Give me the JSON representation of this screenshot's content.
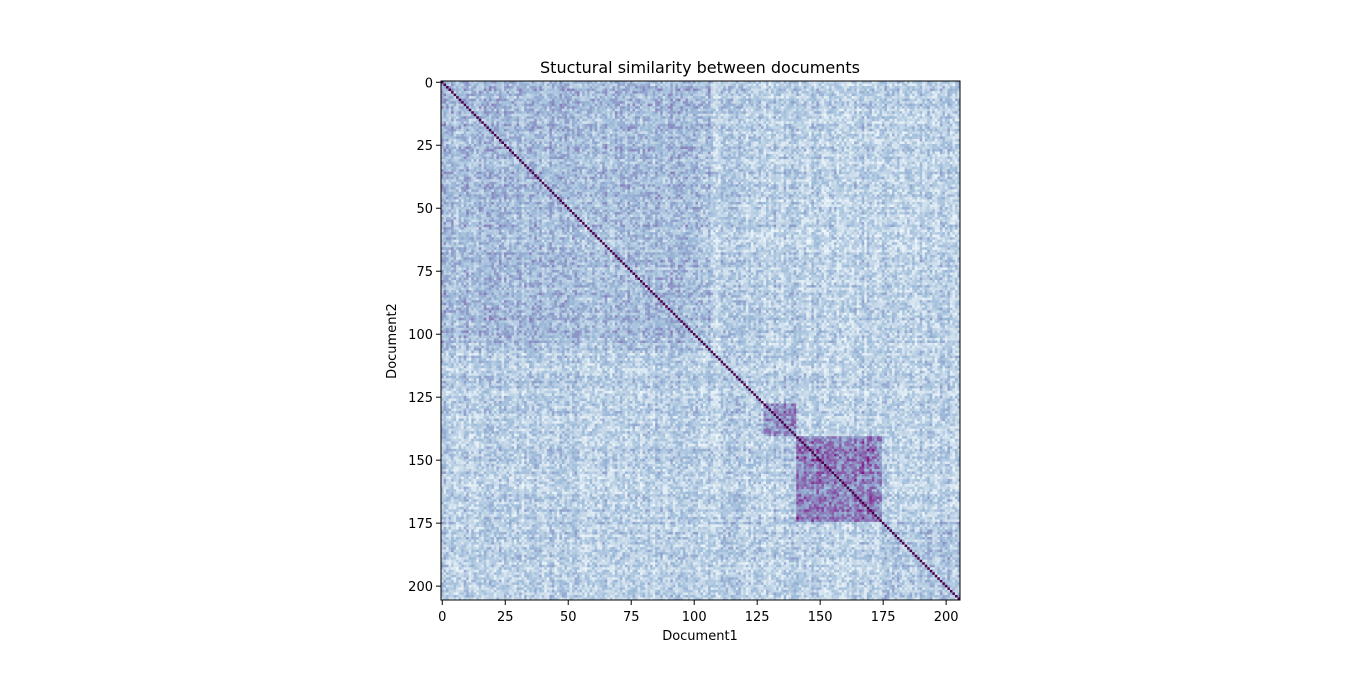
{
  "chart_data": {
    "type": "heatmap",
    "title": "Stuctural similarity between documents",
    "xlabel": "Document1",
    "ylabel": "Document2",
    "n": 206,
    "xlim": [
      0,
      206
    ],
    "ylim": [
      206,
      0
    ],
    "xticks": [
      0,
      25,
      50,
      75,
      100,
      125,
      150,
      175,
      200
    ],
    "yticks": [
      0,
      25,
      50,
      75,
      100,
      125,
      150,
      175,
      200
    ],
    "colormap": "BuPu",
    "colors": {
      "low": "#f7fcfd",
      "light": "#bfd3e6",
      "mid": "#9ebcda",
      "high": "#8c6bb1",
      "max": "#4d004b"
    },
    "structure": {
      "diagonal_value": 1.0,
      "background_mean": 0.32,
      "noise_amplitude": 0.18,
      "blocks": [
        {
          "rows": [
            0,
            107
          ],
          "cols": [
            0,
            107
          ],
          "mean": 0.42
        },
        {
          "rows": [
            128,
            141
          ],
          "cols": [
            128,
            141
          ],
          "mean": 0.6
        },
        {
          "rows": [
            141,
            175
          ],
          "cols": [
            141,
            175
          ],
          "mean": 0.68
        },
        {
          "rows": [
            175,
            206
          ],
          "cols": [
            175,
            206
          ],
          "mean": 0.38
        }
      ]
    }
  }
}
